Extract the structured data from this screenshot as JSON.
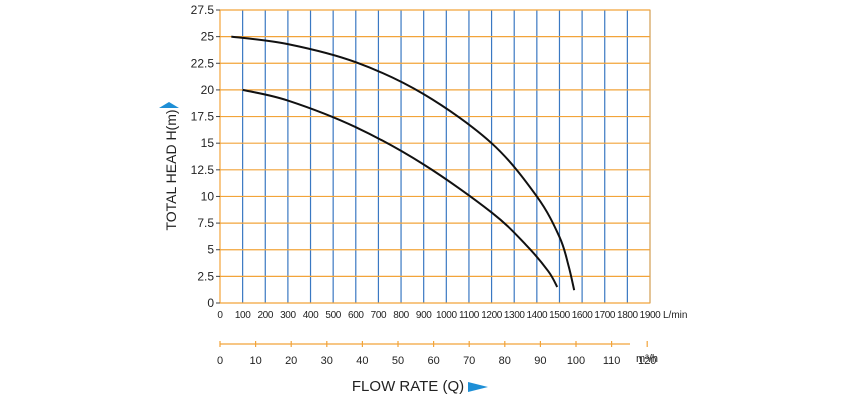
{
  "chart_data": {
    "type": "line",
    "title": "",
    "ylabel": "TOTAL HEAD H(m)",
    "xlabel": "FLOW RATE (Q)",
    "x_unit_primary": "L/min",
    "x_unit_secondary": "m³/h",
    "xlim": [
      0,
      1900
    ],
    "ylim": [
      0,
      27.5
    ],
    "x_ticks": [
      0,
      100,
      200,
      300,
      400,
      500,
      600,
      700,
      800,
      900,
      1000,
      1100,
      1200,
      1300,
      1400,
      1500,
      1600,
      1700,
      1800,
      1900
    ],
    "x_tick_labels": [
      "0",
      "100",
      "200",
      "300",
      "400",
      "500",
      "600",
      "700",
      "800",
      "900",
      "1000",
      "1100",
      "1200",
      "1300",
      "1400",
      "1500",
      "1600",
      "1700",
      "1800",
      "1900"
    ],
    "y_ticks": [
      0,
      2.5,
      5,
      7.5,
      10,
      12.5,
      15,
      17.5,
      20,
      22.5,
      25,
      27.5
    ],
    "y_tick_labels": [
      "0",
      "2.5",
      "5",
      "7.5",
      "10",
      "12.5",
      "15",
      "17.5",
      "20",
      "22.5",
      "25",
      "27.5"
    ],
    "x2_ticks": [
      0,
      10,
      20,
      30,
      40,
      50,
      60,
      70,
      80,
      90,
      100,
      110,
      120
    ],
    "x2_tick_labels": [
      "0",
      "10",
      "20",
      "30",
      "40",
      "50",
      "60",
      "70",
      "80",
      "90",
      "100",
      "110",
      "120"
    ],
    "grid": true,
    "colors": {
      "grid_horizontal": "#f2a43a",
      "grid_vertical": "#3a78c2",
      "curve": "#111111",
      "arrow": "#1e8fd6"
    },
    "series": [
      {
        "x": [
          50,
          300,
          600,
          900,
          1200,
          1400,
          1500,
          1540,
          1565
        ],
        "y": [
          25,
          24.3,
          22.6,
          19.6,
          15,
          10,
          6.2,
          3.5,
          1.2
        ]
      },
      {
        "x": [
          100,
          300,
          600,
          900,
          1200,
          1350,
          1450,
          1490
        ],
        "y": [
          20,
          19,
          16.5,
          13,
          8.5,
          5.5,
          3,
          1.5
        ]
      }
    ]
  }
}
